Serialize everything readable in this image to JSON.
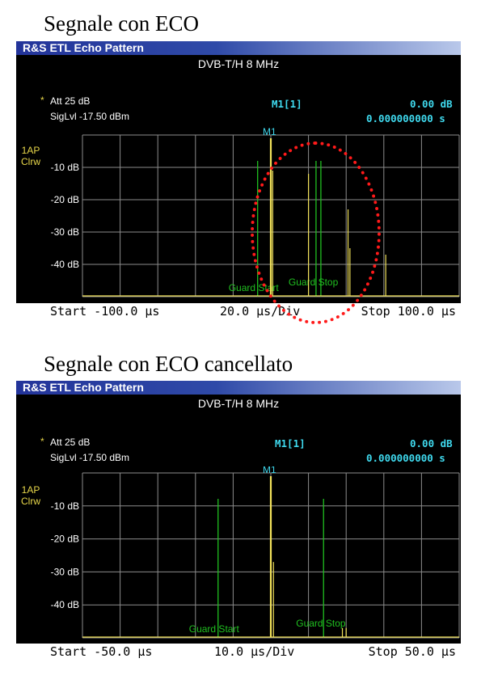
{
  "panels": [
    {
      "heading": "Segnale con ECO",
      "window_title": "R&S ETL Echo Pattern",
      "standard": "DVB-T/H  8 MHz",
      "att": "Att  25 dB",
      "att_marker": "*",
      "siglvl": "SigLvl -17.50 dBm",
      "marker_id": "M1[1]",
      "marker_level": "0.00 dB",
      "marker_time": "0.000000000 s",
      "marker_label": "M1",
      "trace_mode_1": "1AP",
      "trace_mode_2": "Clrw",
      "y_labels": [
        "-10 dB",
        "-20 dB",
        "-30 dB",
        "-40 dB"
      ],
      "guard_start": "Guard Start",
      "guard_stop": "Guard Stop",
      "start": "Start -100.0 µs",
      "div": "20.0 µs/Div",
      "stop": "Stop 100.0 µs",
      "chart_data": {
        "type": "line",
        "xlim": [
          -100,
          100
        ],
        "ylim": [
          -50,
          0
        ],
        "x_unit": "µs",
        "y_unit": "dB",
        "echoes": [
          {
            "x": 0,
            "y": 0
          },
          {
            "x": 1,
            "y": -11
          },
          {
            "x": 20,
            "y": -12
          },
          {
            "x": 41,
            "y": -23
          },
          {
            "x": 42,
            "y": -35
          },
          {
            "x": 61,
            "y": -37
          }
        ],
        "guard_interval": [
          -7,
          24
        ]
      }
    },
    {
      "heading": "Segnale con ECO cancellato",
      "window_title": "R&S ETL Echo Pattern",
      "standard": "DVB-T/H  8 MHz",
      "att": "Att  25 dB",
      "att_marker": "*",
      "siglvl": "SigLvl -17.50 dBm",
      "marker_id": "M1[1]",
      "marker_level": "0.00 dB",
      "marker_time": "0.000000000 s",
      "marker_label": "M1",
      "trace_mode_1": "1AP",
      "trace_mode_2": "Clrw",
      "y_labels": [
        "-10 dB",
        "-20 dB",
        "-30 dB",
        "-40 dB"
      ],
      "guard_start": "Guard Start",
      "guard_stop": "Guard Stop",
      "start": "Start -50.0 µs",
      "div": "10.0 µs/Div",
      "stop": "Stop 50.0 µs",
      "chart_data": {
        "type": "line",
        "xlim": [
          -50,
          50
        ],
        "ylim": [
          -50,
          0
        ],
        "x_unit": "µs",
        "y_unit": "dB",
        "echoes": [
          {
            "x": 0,
            "y": 0
          },
          {
            "x": 0.7,
            "y": -27
          },
          {
            "x": 19,
            "y": -47
          },
          {
            "x": 20,
            "y": -47
          }
        ],
        "guard_interval": [
          -14,
          14
        ]
      }
    }
  ],
  "colors": {
    "trace": "#f2e25a",
    "guard": "#20c020",
    "grid": "#8c8c8c",
    "marker": "#3fd9ee",
    "highlight": "#ff1a1a"
  }
}
